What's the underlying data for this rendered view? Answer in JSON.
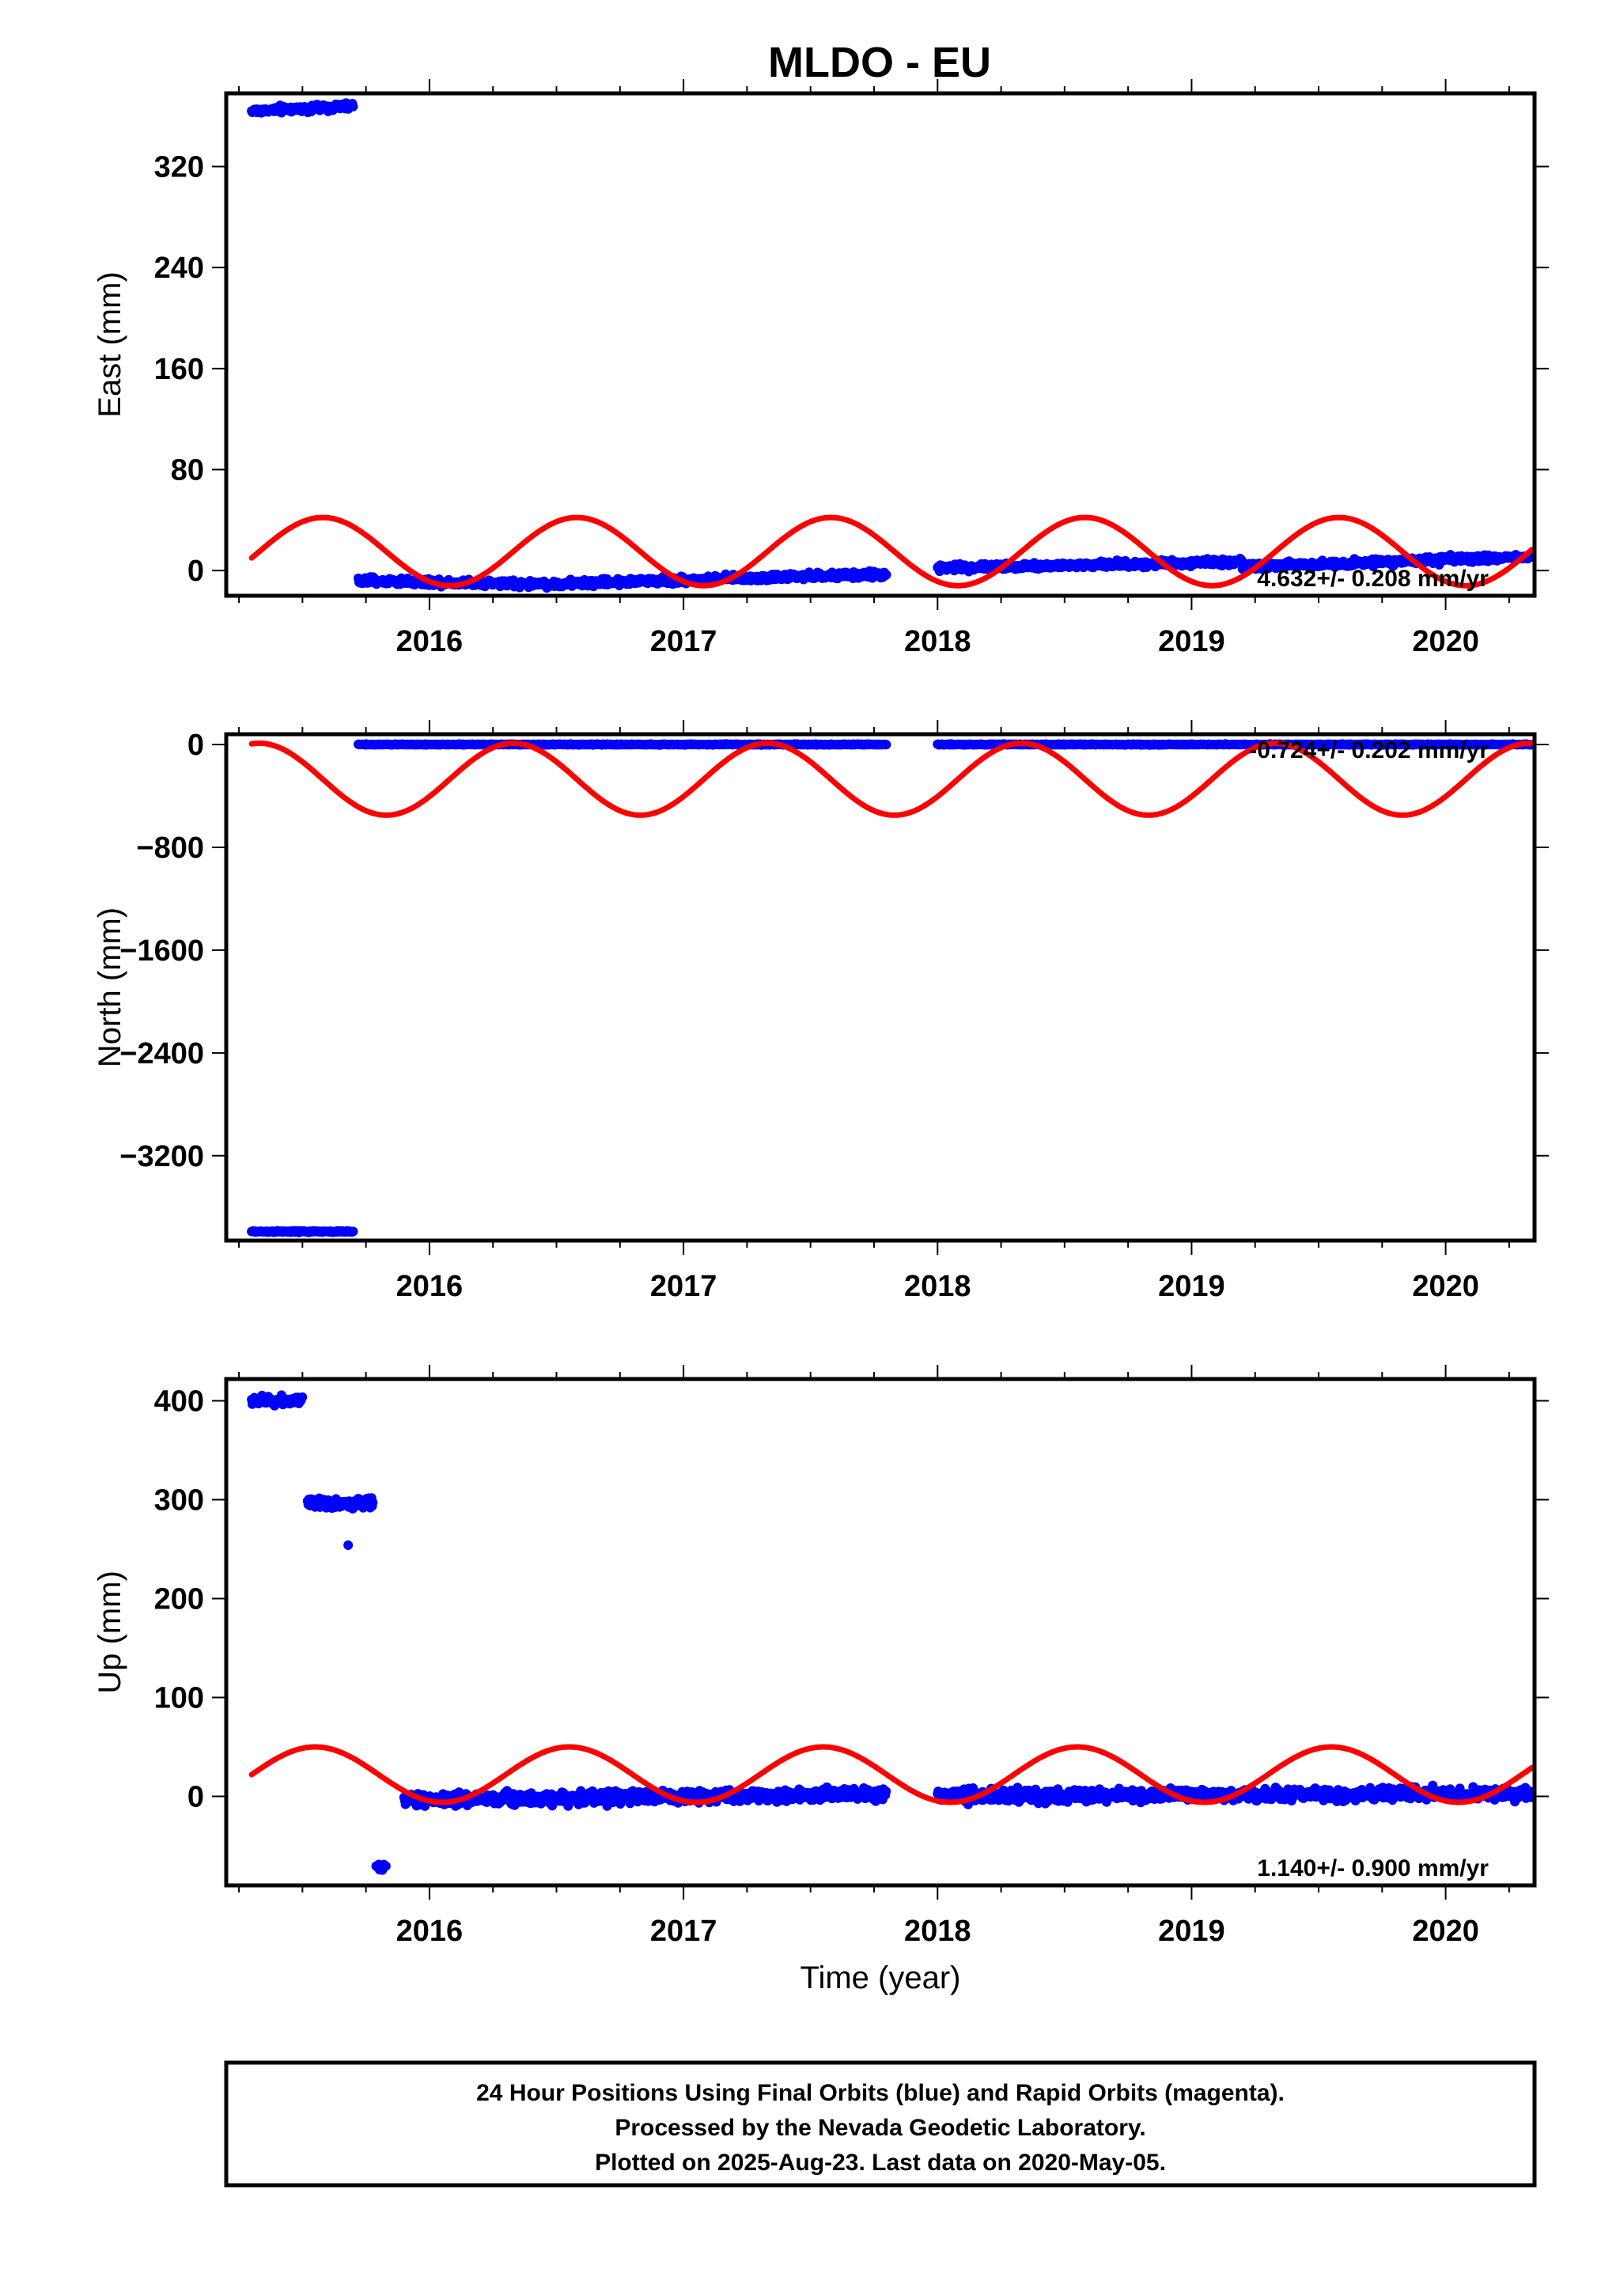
{
  "page_title": "MLDO - EU",
  "colors": {
    "data": "#0000ff",
    "model": "#ff0000",
    "frame": "#000000"
  },
  "chart_data": [
    {
      "type": "scatter",
      "name": "east",
      "ylabel": "East (mm)",
      "xlim": [
        2015.2,
        2020.35
      ],
      "ylim": [
        -20,
        378
      ],
      "yticks": [
        0,
        80,
        160,
        240,
        320
      ],
      "ytick_labels": [
        "0",
        "80",
        "160",
        "240",
        "320"
      ],
      "xticks": [
        2016,
        2017,
        2018,
        2019,
        2020
      ],
      "xtick_labels": [
        "2016",
        "2017",
        "2018",
        "2019",
        "2020"
      ],
      "rate_label": "4.632+/- 0.208 mm/yr",
      "segments": [
        {
          "t0": 2015.3,
          "t1": 2015.7,
          "start": 364,
          "end": 368,
          "noise": 2.5
        },
        {
          "t0": 2015.72,
          "t1": 2016.55,
          "start": -8,
          "end": -11,
          "noise": 2.5
        },
        {
          "t0": 2016.55,
          "t1": 2017.8,
          "start": -10,
          "end": -3,
          "noise": 2.5
        },
        {
          "t0": 2018.0,
          "t1": 2019.2,
          "start": 2,
          "end": 7,
          "noise": 2.5
        },
        {
          "t0": 2019.2,
          "t1": 2020.34,
          "start": 3,
          "end": 11,
          "noise": 2.5
        }
      ],
      "model": {
        "t0": 2015.3,
        "t1": 2020.34,
        "offset": 15,
        "trend": 0.0,
        "amplitude": 27,
        "phase_year": 2015.58,
        "step": []
      }
    },
    {
      "type": "scatter",
      "name": "north",
      "ylabel": "North (mm)",
      "xlim": [
        2015.2,
        2020.35
      ],
      "ylim": [
        -3860,
        80
      ],
      "yticks": [
        0,
        -800,
        -1600,
        -2400,
        -3200
      ],
      "ytick_labels": [
        "0",
        "−800",
        "−1600",
        "−2400",
        "−3200"
      ],
      "xticks": [
        2016,
        2017,
        2018,
        2019,
        2020
      ],
      "xtick_labels": [
        "2016",
        "2017",
        "2018",
        "2019",
        "2020"
      ],
      "rate_label": "-0.724+/- 0.202 mm/yr",
      "segments": [
        {
          "t0": 2015.3,
          "t1": 2015.7,
          "start": -3790,
          "end": -3790,
          "noise": 6
        },
        {
          "t0": 2015.72,
          "t1": 2017.8,
          "start": 0,
          "end": 0,
          "noise": 3
        },
        {
          "t0": 2018.0,
          "t1": 2020.34,
          "start": 0,
          "end": 0,
          "noise": 3
        }
      ],
      "model": {
        "t0": 2015.3,
        "t1": 2020.34,
        "offset": -270,
        "trend": 0.0,
        "amplitude": 280,
        "phase_year": 2015.33,
        "step": []
      }
    },
    {
      "type": "scatter",
      "name": "up",
      "ylabel": "Up (mm)",
      "xlabel": "Time (year)",
      "xlim": [
        2015.2,
        2020.35
      ],
      "ylim": [
        -90,
        422
      ],
      "yticks": [
        0,
        100,
        200,
        300,
        400
      ],
      "ytick_labels": [
        "0",
        "100",
        "200",
        "300",
        "400"
      ],
      "xticks": [
        2016,
        2017,
        2018,
        2019,
        2020
      ],
      "xtick_labels": [
        "2016",
        "2017",
        "2018",
        "2019",
        "2020"
      ],
      "rate_label": "1.140+/- 0.900 mm/yr",
      "segments": [
        {
          "t0": 2015.3,
          "t1": 2015.5,
          "start": 400,
          "end": 400,
          "noise": 5
        },
        {
          "t0": 2015.52,
          "t1": 2015.78,
          "start": 296,
          "end": 296,
          "noise": 5
        },
        {
          "t0": 2015.79,
          "t1": 2015.83,
          "start": -70,
          "end": -72,
          "noise": 3
        },
        {
          "t0": 2015.9,
          "t1": 2017.8,
          "start": -3,
          "end": 2,
          "noise": 6
        },
        {
          "t0": 2018.0,
          "t1": 2020.34,
          "start": 0,
          "end": 3,
          "noise": 6
        }
      ],
      "outliers": [
        {
          "t": 2015.68,
          "y": 254
        }
      ],
      "model": {
        "t0": 2015.3,
        "t1": 2020.34,
        "offset": 22,
        "trend": 0.0,
        "amplitude": 28,
        "phase_year": 2015.55,
        "step": []
      }
    }
  ],
  "footer": {
    "line1": "24 Hour Positions Using Final Orbits (blue) and Rapid Orbits (magenta).",
    "line2": "Processed by the Nevada Geodetic Laboratory.",
    "line3": "Plotted on 2025-Aug-23. Last data on 2020-May-05."
  }
}
